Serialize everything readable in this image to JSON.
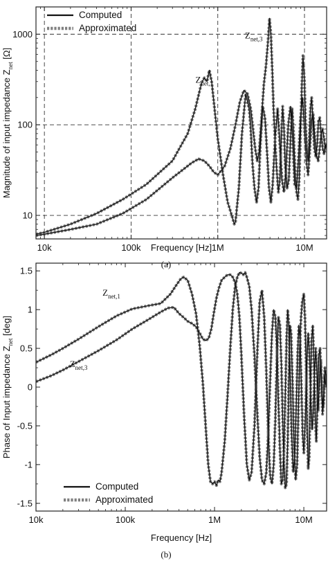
{
  "chart_data": [
    {
      "type": "line",
      "panel_label": "(a)",
      "xlabel": "Frequency [Hz]",
      "ylabel_parts": [
        "Magnitude of input impedance Z",
        "net",
        " [Ω]"
      ],
      "xscale": "log",
      "yscale": "log",
      "xlim": [
        8000,
        18000000
      ],
      "ylim": [
        5.5,
        2000
      ],
      "xticks": [
        {
          "v": 10000,
          "label": "10k"
        },
        {
          "v": 100000,
          "label": "100k"
        },
        {
          "v": 1000000,
          "label": "1M"
        },
        {
          "v": 10000000,
          "label": "10M"
        }
      ],
      "yticks": [
        {
          "v": 10,
          "label": "10"
        },
        {
          "v": 100,
          "label": "100"
        },
        {
          "v": 1000,
          "label": "1000"
        }
      ],
      "grid": true,
      "legend_position": "top-left",
      "legend": [
        {
          "label": "Computed",
          "style": "solid",
          "color": "#111111"
        },
        {
          "label": "Approximated",
          "style": "dotted",
          "color": "#808080"
        }
      ],
      "annotations": [
        {
          "main": "Z",
          "sub": "net,1",
          "x": 700000,
          "y": 290
        },
        {
          "main": "Z",
          "sub": "net,3",
          "x": 2600000,
          "y": 900
        }
      ],
      "series": [
        {
          "name": "Z_net,1",
          "x": [
            8000,
            10000,
            20000,
            40000,
            80000,
            150000,
            300000,
            450000,
            550000,
            650000,
            700000,
            750000,
            800000,
            850000,
            900000,
            1000000,
            1150000,
            1300000,
            1450000,
            1550000,
            1600000,
            1750000,
            1900000,
            2100000,
            2300000,
            2400000,
            2500000,
            2650000,
            2800000,
            2950000,
            3100000,
            3300000,
            3500000,
            3700000,
            3900000,
            4100000,
            4300000,
            4600000,
            4900000,
            5200000,
            5500000,
            5800000,
            6100000,
            6500000,
            6900000,
            7300000,
            7700000,
            8100000,
            8500000,
            9000000,
            9500000,
            10000000,
            10500000,
            11000000,
            11500000,
            12000000,
            12600000,
            13200000,
            13800000,
            14400000,
            15000000,
            15600000,
            16200000,
            16800000,
            17400000,
            18000000
          ],
          "y": [
            6.2,
            6.5,
            8,
            10.5,
            15,
            22,
            40,
            80,
            150,
            290,
            330,
            300,
            400,
            300,
            180,
            70,
            28,
            14,
            10,
            8,
            8.5,
            20,
            80,
            220,
            150,
            90,
            40,
            20,
            14,
            20,
            60,
            160,
            120,
            50,
            20,
            14,
            22,
            75,
            150,
            60,
            25,
            18,
            30,
            100,
            160,
            70,
            22,
            20,
            40,
            120,
            200,
            90,
            40,
            28,
            50,
            110,
            130,
            70,
            45,
            40,
            55,
            80,
            90,
            70,
            55,
            60
          ]
        },
        {
          "name": "Z_net,3",
          "x": [
            8000,
            10000,
            20000,
            40000,
            80000,
            150000,
            300000,
            500000,
            600000,
            700000,
            800000,
            900000,
            1000000,
            1200000,
            1400000,
            1600000,
            1800000,
            2000000,
            2200000,
            2400000,
            2550000,
            2700000,
            2850000,
            3000000,
            3200000,
            3400000,
            3600000,
            3800000,
            3950000,
            4100000,
            4250000,
            4400000,
            4600000,
            4800000,
            5000000,
            5200000,
            5400000,
            5600000,
            5800000,
            6000000,
            6300000,
            6600000,
            6900000,
            7200000,
            7500000,
            7800000,
            8100000,
            8400000,
            8700000,
            9000000,
            9300000,
            9600000,
            10000000,
            10300000,
            10700000,
            11000000,
            11300000,
            11700000,
            12100000,
            12500000,
            13000000,
            13500000,
            14000000,
            14500000,
            15000000,
            15600000,
            16200000,
            16800000,
            17400000,
            18000000
          ],
          "y": [
            6,
            6.2,
            7,
            8,
            10.5,
            15,
            26,
            38,
            42,
            40,
            35,
            30,
            28,
            35,
            55,
            100,
            180,
            240,
            220,
            150,
            90,
            55,
            40,
            50,
            120,
            280,
            450,
            850,
            1500,
            1000,
            400,
            150,
            60,
            30,
            18,
            25,
            70,
            160,
            90,
            35,
            20,
            25,
            70,
            150,
            80,
            30,
            18,
            15,
            25,
            80,
            250,
            580,
            300,
            100,
            50,
            40,
            60,
            150,
            200,
            110,
            55,
            45,
            60,
            110,
            120,
            75,
            55,
            48,
            58,
            62
          ]
        }
      ]
    },
    {
      "type": "line",
      "panel_label": "(b)",
      "xlabel": "Frequency [Hz]",
      "ylabel_parts": [
        "Phase of Input impedance Z",
        "net",
        " [deg]"
      ],
      "xscale": "log",
      "yscale": "linear",
      "xlim": [
        10000,
        18000000
      ],
      "ylim": [
        -1.6,
        1.6
      ],
      "xticks": [
        {
          "v": 10000,
          "label": "10k"
        },
        {
          "v": 100000,
          "label": "100k"
        },
        {
          "v": 1000000,
          "label": "1M"
        },
        {
          "v": 10000000,
          "label": "10M"
        }
      ],
      "yticks": [
        {
          "v": 1.5,
          "label": "1.5"
        },
        {
          "v": 1,
          "label": "1"
        },
        {
          "v": 0.5,
          "label": "0.5"
        },
        {
          "v": 0,
          "label": "0"
        },
        {
          "v": -0.5,
          "label": "-0.5"
        },
        {
          "v": -1,
          "label": "-1"
        },
        {
          "v": -1.5,
          "label": "-1.5"
        }
      ],
      "grid": false,
      "legend_position": "bottom-left",
      "legend": [
        {
          "label": "Computed",
          "style": "solid",
          "color": "#111111"
        },
        {
          "label": "Approximated",
          "style": "dotted",
          "color": "#808080"
        }
      ],
      "annotations": [
        {
          "main": "Z",
          "sub": "net,1",
          "x": 70000,
          "y": 1.18
        },
        {
          "main": "Z",
          "sub": "net,3",
          "x": 30000,
          "y": 0.26
        }
      ],
      "series": [
        {
          "name": "Z_net,1",
          "x": [
            10000,
            15000,
            20000,
            30000,
            50000,
            80000,
            120000,
            180000,
            250000,
            320000,
            380000,
            420000,
            450000,
            500000,
            560000,
            620000,
            680000,
            740000,
            800000,
            850000,
            900000,
            950000,
            1000000,
            1050000,
            1100000,
            1150000,
            1200000,
            1300000,
            1400000,
            1500000,
            1600000,
            1700000,
            1800000,
            1900000,
            2000000,
            2100000,
            2200000,
            2300000,
            2450000,
            2600000,
            2800000,
            3000000,
            3200000,
            3400000,
            3600000,
            3800000,
            4000000,
            4200000,
            4400000,
            4600000,
            4800000,
            5000000,
            5200000,
            5400000,
            5600000,
            5800000,
            6000000,
            6200000,
            6400000,
            6600000,
            6800000,
            7000000,
            7300000,
            7600000,
            7900000,
            8200000,
            8500000,
            8800000,
            9100000,
            9400000,
            9700000,
            10000000,
            10400000,
            10800000,
            11200000,
            11600000,
            12000000,
            12400000,
            12800000,
            13200000,
            13600000,
            14000000,
            14500000,
            15000000,
            15500000,
            16000000,
            16500000,
            17000000,
            17500000,
            18000000
          ],
          "y": [
            0.32,
            0.42,
            0.5,
            0.62,
            0.78,
            0.92,
            1.01,
            1.05,
            1.08,
            1.2,
            1.33,
            1.4,
            1.42,
            1.38,
            1.2,
            0.95,
            0.55,
            0.05,
            -0.55,
            -1.0,
            -1.22,
            -1.25,
            -1.22,
            -1.27,
            -1.2,
            -1.22,
            -1.1,
            -0.7,
            -0.1,
            0.5,
            1.0,
            1.3,
            1.42,
            1.48,
            1.47,
            1.45,
            1.48,
            1.42,
            1.3,
            1.0,
            0.4,
            -0.3,
            -0.9,
            -1.2,
            -1.25,
            -1.1,
            -0.6,
            0.1,
            0.7,
            1.0,
            0.9,
            0.5,
            -0.2,
            -0.8,
            -1.25,
            -1.2,
            -0.8,
            -0.1,
            0.6,
            1.0,
            0.8,
            0.2,
            -0.6,
            -1.1,
            -0.9,
            -0.3,
            0.4,
            0.8,
            0.6,
            0.0,
            -0.6,
            -0.85,
            -0.4,
            0.3,
            0.7,
            0.4,
            -0.2,
            -0.55,
            -0.3,
            0.2,
            0.5,
            0.2,
            -0.3,
            0.1,
            0.35,
            -0.1,
            -0.25,
            0.15,
            0.05,
            0.0
          ]
        },
        {
          "name": "Z_net,3",
          "x": [
            10000,
            15000,
            20000,
            30000,
            50000,
            80000,
            120000,
            180000,
            250000,
            300000,
            350000,
            400000,
            450000,
            500000,
            560000,
            620000,
            680000,
            740000,
            800000,
            860000,
            920000,
            980000,
            1050000,
            1120000,
            1200000,
            1300000,
            1400000,
            1500000,
            1600000,
            1700000,
            1800000,
            1900000,
            2000000,
            2150000,
            2300000,
            2450000,
            2600000,
            2800000,
            3000000,
            3200000,
            3400000,
            3600000,
            3800000,
            4000000,
            4200000,
            4400000,
            4600000,
            4800000,
            5000000,
            5200000,
            5400000,
            5600000,
            5800000,
            6000000,
            6200000,
            6400000,
            6600000,
            6800000,
            7000000,
            7200000,
            7500000,
            7800000,
            8100000,
            8400000,
            8700000,
            9000000,
            9300000,
            9600000,
            10000000,
            10300000,
            10600000,
            10900000,
            11200000,
            11500000,
            11800000,
            12200000,
            12600000,
            13000000,
            13400000,
            13800000,
            14200000,
            14700000,
            15200000,
            15700000,
            16200000,
            16700000,
            17200000,
            17700000,
            18000000
          ],
          "y": [
            0.07,
            0.15,
            0.22,
            0.33,
            0.47,
            0.61,
            0.75,
            0.87,
            0.97,
            1.02,
            1.03,
            0.95,
            0.9,
            0.85,
            0.82,
            0.78,
            0.7,
            0.62,
            0.6,
            0.63,
            0.75,
            0.95,
            1.15,
            1.28,
            1.38,
            1.42,
            1.45,
            1.45,
            1.42,
            1.35,
            1.2,
            0.9,
            0.4,
            -0.4,
            -1.0,
            -1.2,
            -1.1,
            -0.5,
            0.4,
            1.1,
            1.25,
            0.9,
            0.2,
            -0.6,
            -1.15,
            -1.25,
            -1.0,
            -0.4,
            0.4,
            0.9,
            0.8,
            0.3,
            -0.4,
            -1.0,
            -1.3,
            -1.25,
            -0.7,
            0.1,
            0.8,
            0.7,
            0.0,
            -0.8,
            -1.2,
            -1.0,
            -0.3,
            0.5,
            0.9,
            1.1,
            1.2,
            0.9,
            0.3,
            -0.5,
            -1.05,
            -0.9,
            -0.2,
            0.6,
            0.8,
            0.3,
            -0.4,
            -0.7,
            -0.2,
            0.4,
            0.5,
            0.1,
            -0.35,
            -0.2,
            0.25,
            0.15,
            0.0
          ]
        }
      ]
    }
  ]
}
